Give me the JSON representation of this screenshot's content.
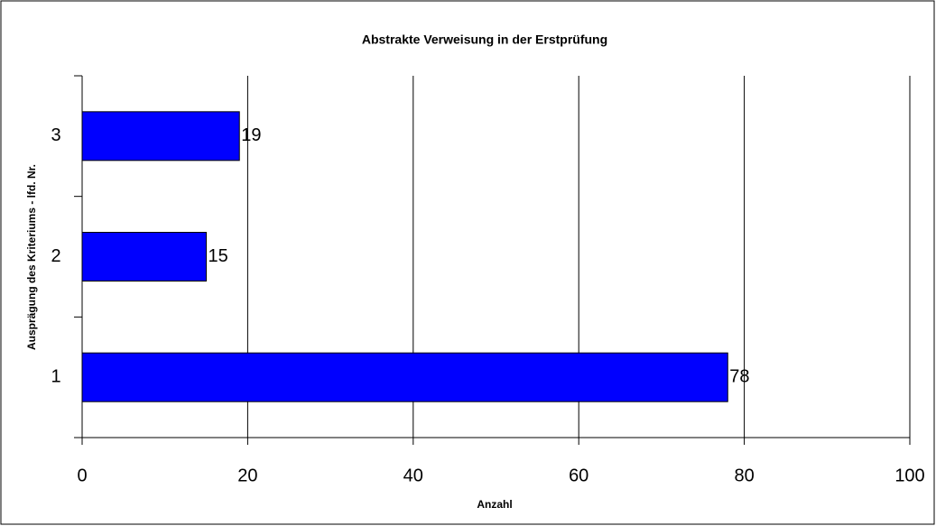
{
  "chart_data": {
    "type": "bar",
    "orientation": "horizontal",
    "title": "Abstrakte Verweisung in der Erstprüfung",
    "xlabel": "Anzahl",
    "ylabel": "Ausprägung des Kriteriums - lfd. Nr.",
    "categories": [
      "1",
      "2",
      "3"
    ],
    "values": [
      78,
      15,
      19
    ],
    "color": "#0000ff",
    "xlim": [
      0,
      100
    ],
    "xticks": [
      0,
      20,
      40,
      60,
      80,
      100
    ],
    "grid": true
  }
}
